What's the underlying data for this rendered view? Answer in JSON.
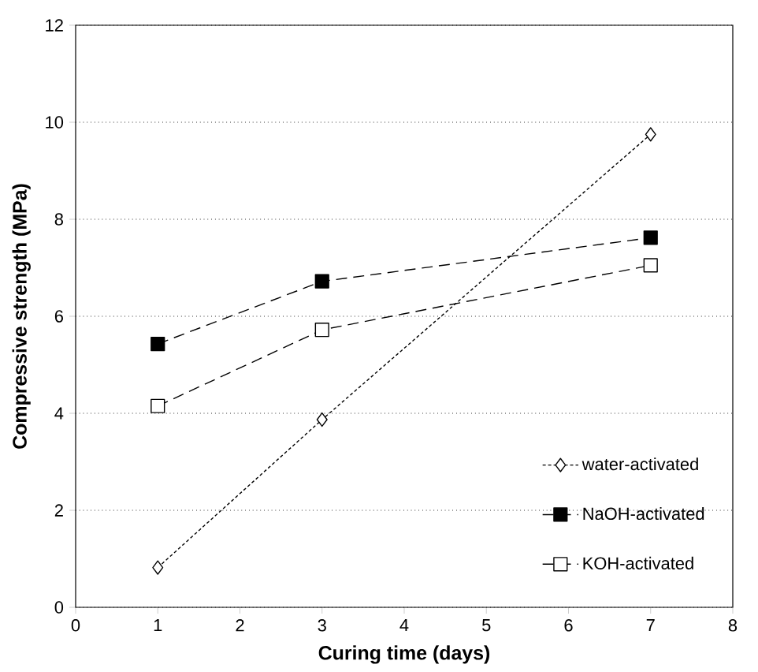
{
  "chart_data": {
    "type": "line",
    "xlabel": "Curing time (days)",
    "ylabel": "Compressive strength (MPa)",
    "xlim": [
      0,
      8
    ],
    "ylim": [
      0,
      12
    ],
    "xticks": [
      0,
      1,
      2,
      3,
      4,
      5,
      6,
      7,
      8
    ],
    "yticks": [
      0,
      2,
      4,
      6,
      8,
      10,
      12
    ],
    "grid": "y",
    "legend": "bottom right",
    "series": [
      {
        "name": "water-activated",
        "color": "#ffffff",
        "marker": "diamond",
        "line_style": "dotted",
        "x": [
          1,
          3,
          7
        ],
        "values": [
          0.82,
          3.87,
          9.75
        ]
      },
      {
        "name": "NaOH-activated",
        "color": "#000000",
        "marker": "square",
        "line_style": "dashed",
        "x": [
          1,
          3,
          7
        ],
        "values": [
          5.43,
          6.72,
          7.62
        ]
      },
      {
        "name": "KOH-activated",
        "color": "#ffffff",
        "marker": "square",
        "line_style": "dashed",
        "x": [
          1,
          3,
          7
        ],
        "values": [
          4.15,
          5.72,
          7.05
        ]
      }
    ]
  }
}
